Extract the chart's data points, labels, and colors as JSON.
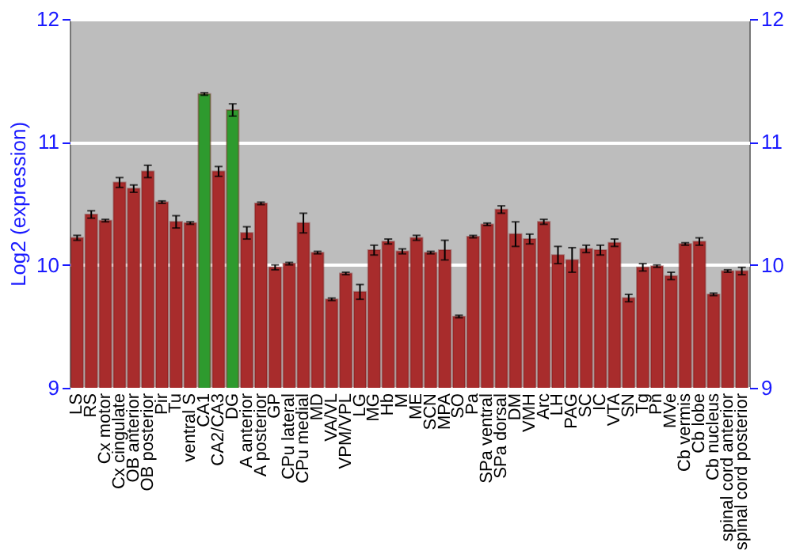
{
  "chart_data": {
    "type": "bar",
    "ylabel": "Log2 (expression)",
    "categories": [
      "LS",
      "RS",
      "Cx motor",
      "Cx cingulate",
      "OB anterior",
      "OB posterior",
      "Pir",
      "Tu",
      "ventral S",
      "CA1",
      "CA2/CA3",
      "DG",
      "A anterior",
      "A posterior",
      "GP",
      "CPu lateral",
      "CPu medial",
      "MD",
      "VA/VL",
      "VPM/VPL",
      "LG",
      "MG",
      "Hb",
      "M",
      "ME",
      "SCN",
      "MPA",
      "SO",
      "Pa",
      "SPa ventral",
      "SPa dorsal",
      "DM",
      "VMH",
      "Arc",
      "LH",
      "PAG",
      "SC",
      "IC",
      "VTA",
      "SN",
      "Tg",
      "Pn",
      "MVe",
      "Cb vermis",
      "Cb lobe",
      "Cb nucleus",
      "spinal cord anterior",
      "spinal cord posterior"
    ],
    "values": [
      10.22,
      10.41,
      10.36,
      10.67,
      10.62,
      10.76,
      10.51,
      10.35,
      10.34,
      11.39,
      10.76,
      11.26,
      10.26,
      10.5,
      9.98,
      10.01,
      10.34,
      10.1,
      9.72,
      9.93,
      9.78,
      10.12,
      10.19,
      10.11,
      10.22,
      10.1,
      10.12,
      9.58,
      10.23,
      10.33,
      10.45,
      10.25,
      10.21,
      10.35,
      10.08,
      10.04,
      10.13,
      10.12,
      10.18,
      9.73,
      9.98,
      9.99,
      9.91,
      10.17,
      10.19,
      9.76,
      9.95,
      9.95
    ],
    "errors": [
      0.02,
      0.03,
      0.01,
      0.04,
      0.03,
      0.05,
      0.01,
      0.05,
      0.01,
      0.01,
      0.04,
      0.05,
      0.05,
      0.01,
      0.02,
      0.01,
      0.08,
      0.01,
      0.01,
      0.01,
      0.06,
      0.04,
      0.02,
      0.02,
      0.02,
      0.01,
      0.08,
      0.01,
      0.01,
      0.01,
      0.03,
      0.1,
      0.04,
      0.02,
      0.07,
      0.1,
      0.03,
      0.04,
      0.03,
      0.03,
      0.03,
      0.01,
      0.03,
      0.01,
      0.03,
      0.01,
      0.01,
      0.03
    ],
    "colors": [
      "#a82c2c",
      "#a82c2c",
      "#a82c2c",
      "#a82c2c",
      "#a82c2c",
      "#a82c2c",
      "#a82c2c",
      "#a82c2c",
      "#a82c2c",
      "#2e9a2e",
      "#a82c2c",
      "#2e9a2e",
      "#a82c2c",
      "#a82c2c",
      "#a82c2c",
      "#a82c2c",
      "#a82c2c",
      "#a82c2c",
      "#a82c2c",
      "#a82c2c",
      "#a82c2c",
      "#a82c2c",
      "#a82c2c",
      "#a82c2c",
      "#a82c2c",
      "#a82c2c",
      "#a82c2c",
      "#a82c2c",
      "#a82c2c",
      "#a82c2c",
      "#a82c2c",
      "#a82c2c",
      "#a82c2c",
      "#a82c2c",
      "#a82c2c",
      "#a82c2c",
      "#a82c2c",
      "#a82c2c",
      "#a82c2c",
      "#a82c2c",
      "#a82c2c",
      "#a82c2c",
      "#a82c2c",
      "#a82c2c",
      "#a82c2c",
      "#a82c2c",
      "#a82c2c",
      "#a82c2c"
    ],
    "ylim": [
      9,
      12
    ],
    "yticks": [
      9,
      10,
      11,
      12
    ],
    "y2lim": [
      9,
      12
    ],
    "y2ticks": [
      9,
      10,
      11,
      12
    ],
    "grid": "y"
  }
}
